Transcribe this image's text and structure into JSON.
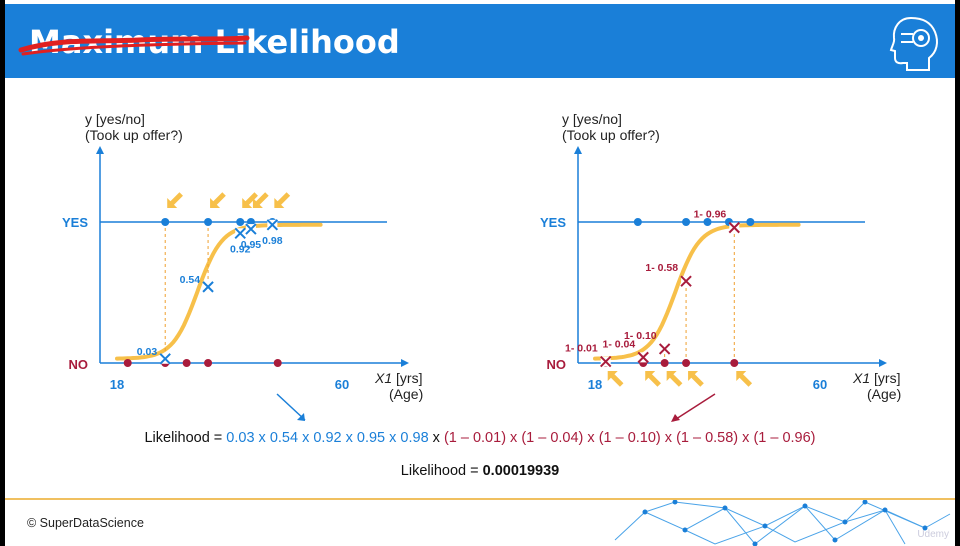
{
  "header": {
    "struck_word": "Maximum",
    "title_word": "Likelihood",
    "accent": "#1a7fd8"
  },
  "colors": {
    "blue": "#1a7fd8",
    "red": "#a81c3c",
    "curve": "#f7c04a",
    "arrow": "#f0a030"
  },
  "chart_data": [
    {
      "type": "scatter",
      "ylabel": "y [yes/no]",
      "ylabel2": "(Took up offer?)",
      "xlabel": "X1 [yrs]",
      "xlabel_sub": "1",
      "xlabel2": "(Age)",
      "y_ticks": [
        "YES",
        "NO"
      ],
      "x_ticks": [
        "18",
        "60"
      ],
      "xlim": [
        18,
        60
      ],
      "yes_x": [
        27,
        35,
        41,
        43,
        47
      ],
      "no_x": [
        20,
        27,
        31,
        35,
        48
      ],
      "highlighted": "yes",
      "probabilities": [
        0.03,
        0.54,
        0.92,
        0.95,
        0.98
      ],
      "labels": [
        "0.03",
        "0.54",
        "0.92",
        "0.95",
        "0.98"
      ]
    },
    {
      "type": "scatter",
      "ylabel": "y [yes/no]",
      "ylabel2": "(Took up offer?)",
      "xlabel": "X1 [yrs]",
      "xlabel_sub": "1",
      "xlabel2": "(Age)",
      "y_ticks": [
        "YES",
        "NO"
      ],
      "x_ticks": [
        "18",
        "60"
      ],
      "xlim": [
        18,
        60
      ],
      "yes_x": [
        26,
        35,
        39,
        43,
        47
      ],
      "no_x": [
        20,
        27,
        31,
        35,
        44
      ],
      "highlighted": "no",
      "probabilities": [
        0.01,
        0.04,
        0.1,
        0.58,
        0.96
      ],
      "labels": [
        "1- 0.01",
        "1- 0.04",
        "1- 0.10",
        "1- 0.58",
        "1- 0.96"
      ]
    }
  ],
  "formula": {
    "prefix": "Likelihood = ",
    "blue_part": "0.03 x 0.54 x 0.92 x 0.95 x 0.98",
    "joiner": " x ",
    "red_part": "(1 – 0.01) x (1 – 0.04) x (1 – 0.10) x (1 – 0.58) x (1 – 0.96)",
    "result_prefix": "Likelihood = ",
    "result": "0.00019939"
  },
  "footer": {
    "copyright": "© SuperDataScience",
    "watermark": "Udemy"
  }
}
